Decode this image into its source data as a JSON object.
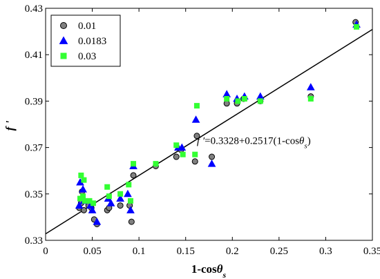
{
  "chart_data": {
    "type": "scatter",
    "xlabel": {
      "main": "1-cos",
      "greek": "θ",
      "sub": "s"
    },
    "ylabel": "f '",
    "xlim": [
      0,
      0.35
    ],
    "ylim": [
      0.33,
      0.43
    ],
    "x_ticks": [
      0,
      0.05,
      0.1,
      0.15,
      0.2,
      0.25,
      0.3,
      0.35
    ],
    "x_tick_labels": [
      "0",
      "0.05",
      "0.1",
      "0.15",
      "0.2",
      "0.25",
      "0.3",
      "0.35"
    ],
    "y_ticks": [
      0.33,
      0.35,
      0.37,
      0.39,
      0.41,
      0.43
    ],
    "y_tick_labels": [
      "0.33",
      "0.35",
      "0.37",
      "0.39",
      "0.41",
      "0.43"
    ],
    "grid": false,
    "legend_position": "top-left",
    "series": [
      {
        "name": "0.01",
        "marker": "circle",
        "color": "#808080",
        "edge_color": "#000000",
        "points": [
          [
            0.036,
            0.344
          ],
          [
            0.038,
            0.346
          ],
          [
            0.039,
            0.351
          ],
          [
            0.041,
            0.343
          ],
          [
            0.046,
            0.345
          ],
          [
            0.049,
            0.344
          ],
          [
            0.052,
            0.339
          ],
          [
            0.055,
            0.337
          ],
          [
            0.066,
            0.343
          ],
          [
            0.068,
            0.344
          ],
          [
            0.08,
            0.345
          ],
          [
            0.09,
            0.345
          ],
          [
            0.092,
            0.338
          ],
          [
            0.094,
            0.358
          ],
          [
            0.118,
            0.362
          ],
          [
            0.14,
            0.366
          ],
          [
            0.145,
            0.369
          ],
          [
            0.16,
            0.364
          ],
          [
            0.162,
            0.375
          ],
          [
            0.178,
            0.366
          ],
          [
            0.194,
            0.389
          ],
          [
            0.205,
            0.389
          ],
          [
            0.212,
            0.391
          ],
          [
            0.23,
            0.39
          ],
          [
            0.284,
            0.392
          ],
          [
            0.332,
            0.424
          ]
        ]
      },
      {
        "name": "0.0183",
        "marker": "triangle",
        "color": "#0000ff",
        "edge_color": "#0000ff",
        "points": [
          [
            0.037,
            0.355
          ],
          [
            0.04,
            0.352
          ],
          [
            0.041,
            0.347
          ],
          [
            0.036,
            0.345
          ],
          [
            0.048,
            0.345
          ],
          [
            0.05,
            0.343
          ],
          [
            0.055,
            0.338
          ],
          [
            0.067,
            0.348
          ],
          [
            0.07,
            0.346
          ],
          [
            0.08,
            0.348
          ],
          [
            0.088,
            0.35
          ],
          [
            0.091,
            0.343
          ],
          [
            0.094,
            0.362
          ],
          [
            0.142,
            0.37
          ],
          [
            0.146,
            0.37
          ],
          [
            0.161,
            0.382
          ],
          [
            0.178,
            0.363
          ],
          [
            0.194,
            0.393
          ],
          [
            0.205,
            0.391
          ],
          [
            0.213,
            0.392
          ],
          [
            0.23,
            0.392
          ],
          [
            0.284,
            0.396
          ],
          [
            0.333,
            0.423
          ]
        ]
      },
      {
        "name": "0.03",
        "marker": "square",
        "color": "#33ff33",
        "edge_color": "#33ff33",
        "points": [
          [
            0.038,
            0.358
          ],
          [
            0.041,
            0.356
          ],
          [
            0.04,
            0.349
          ],
          [
            0.037,
            0.348
          ],
          [
            0.042,
            0.347
          ],
          [
            0.047,
            0.347
          ],
          [
            0.051,
            0.346
          ],
          [
            0.066,
            0.353
          ],
          [
            0.068,
            0.349
          ],
          [
            0.08,
            0.35
          ],
          [
            0.089,
            0.354
          ],
          [
            0.091,
            0.347
          ],
          [
            0.094,
            0.363
          ],
          [
            0.118,
            0.363
          ],
          [
            0.14,
            0.371
          ],
          [
            0.147,
            0.367
          ],
          [
            0.16,
            0.367
          ],
          [
            0.162,
            0.388
          ],
          [
            0.194,
            0.391
          ],
          [
            0.206,
            0.39
          ],
          [
            0.213,
            0.391
          ],
          [
            0.23,
            0.39
          ],
          [
            0.284,
            0.391
          ],
          [
            0.333,
            0.422
          ]
        ]
      }
    ],
    "fit_line": {
      "intercept": 0.3328,
      "slope": 0.2517,
      "x_range": [
        0,
        0.35
      ],
      "color": "#000000"
    },
    "annotation": {
      "lhs": "f ′",
      "text": "=0.3328+0.2517(1-cos",
      "greek": "θ",
      "sub": "s",
      "close": ")",
      "at": [
        0.162,
        0.3715
      ]
    }
  }
}
